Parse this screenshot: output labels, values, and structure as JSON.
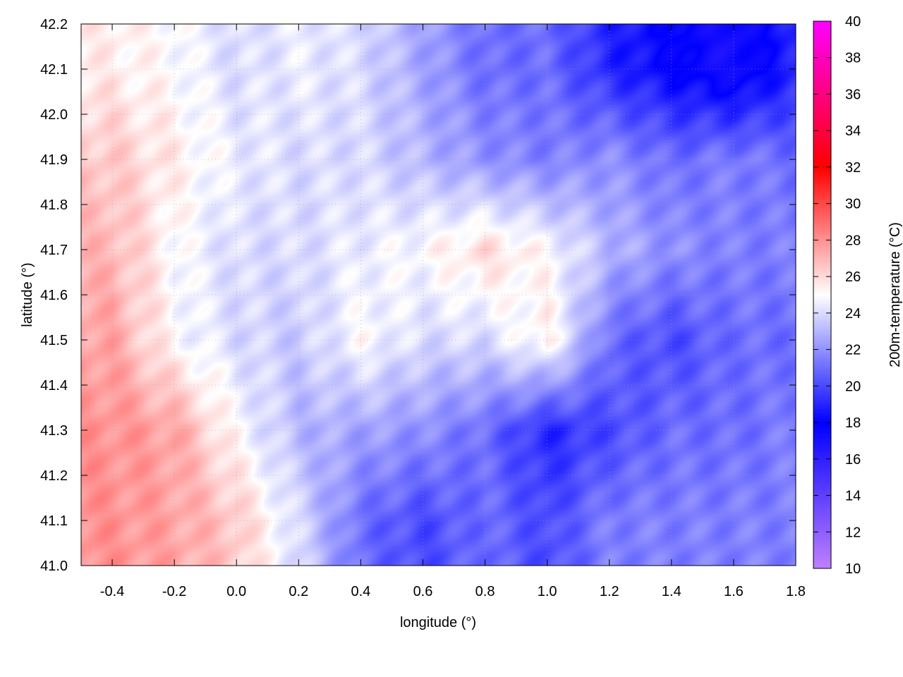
{
  "chart_data": {
    "type": "heatmap",
    "title": "",
    "xlabel": "longitude (°)",
    "ylabel": "latitude (°)",
    "cblabel": "200m-temperature (°C)",
    "xlim": [
      -0.5,
      1.8
    ],
    "ylim": [
      41.0,
      42.2
    ],
    "cblim": [
      10,
      40
    ],
    "xticks": [
      "-0.4",
      "-0.2",
      "0.0",
      "0.2",
      "0.4",
      "0.6",
      "0.8",
      "1.0",
      "1.2",
      "1.4",
      "1.6",
      "1.8"
    ],
    "yticks": [
      "41.0",
      "41.1",
      "41.2",
      "41.3",
      "41.4",
      "41.5",
      "41.6",
      "41.7",
      "41.8",
      "41.9",
      "42.0",
      "42.1",
      "42.2"
    ],
    "cbticks": [
      "10",
      "12",
      "14",
      "16",
      "18",
      "20",
      "22",
      "24",
      "26",
      "28",
      "30",
      "32",
      "34",
      "36",
      "38",
      "40"
    ],
    "grid": true,
    "palette": [
      {
        "value": 10,
        "color": "#c080ff"
      },
      {
        "value": 18,
        "color": "#0000ff"
      },
      {
        "value": 25,
        "color": "#ffffff"
      },
      {
        "value": 32,
        "color": "#ff0000"
      },
      {
        "value": 40,
        "color": "#ff00ff"
      }
    ],
    "lon_centers": [
      -0.4,
      -0.2,
      0.0,
      0.2,
      0.4,
      0.6,
      0.8,
      1.0,
      1.2,
      1.4,
      1.6,
      1.8
    ],
    "lat_centers": [
      42.1,
      41.9,
      41.7,
      41.5,
      41.3,
      41.1
    ],
    "values": [
      [
        25.5,
        25,
        24,
        24.5,
        24,
        22.5,
        21,
        21,
        19,
        18,
        17,
        19
      ],
      [
        26.5,
        25.5,
        24.5,
        24,
        24,
        23,
        22,
        21.5,
        22,
        21,
        21.5,
        21
      ],
      [
        27,
        25,
        24,
        24,
        24.5,
        25,
        26,
        25,
        23,
        22,
        21.5,
        21.5
      ],
      [
        27.5,
        25,
        24,
        23.5,
        25,
        24,
        24,
        25.5,
        21,
        20,
        21,
        21
      ],
      [
        28,
        27.5,
        25,
        23,
        22.5,
        22,
        21,
        19,
        20,
        21,
        21,
        21.5
      ],
      [
        28,
        27.5,
        26.5,
        24,
        21,
        20,
        21,
        20,
        21.5,
        21.5,
        21.5,
        21.5
      ]
    ],
    "contour_interval": 2
  }
}
